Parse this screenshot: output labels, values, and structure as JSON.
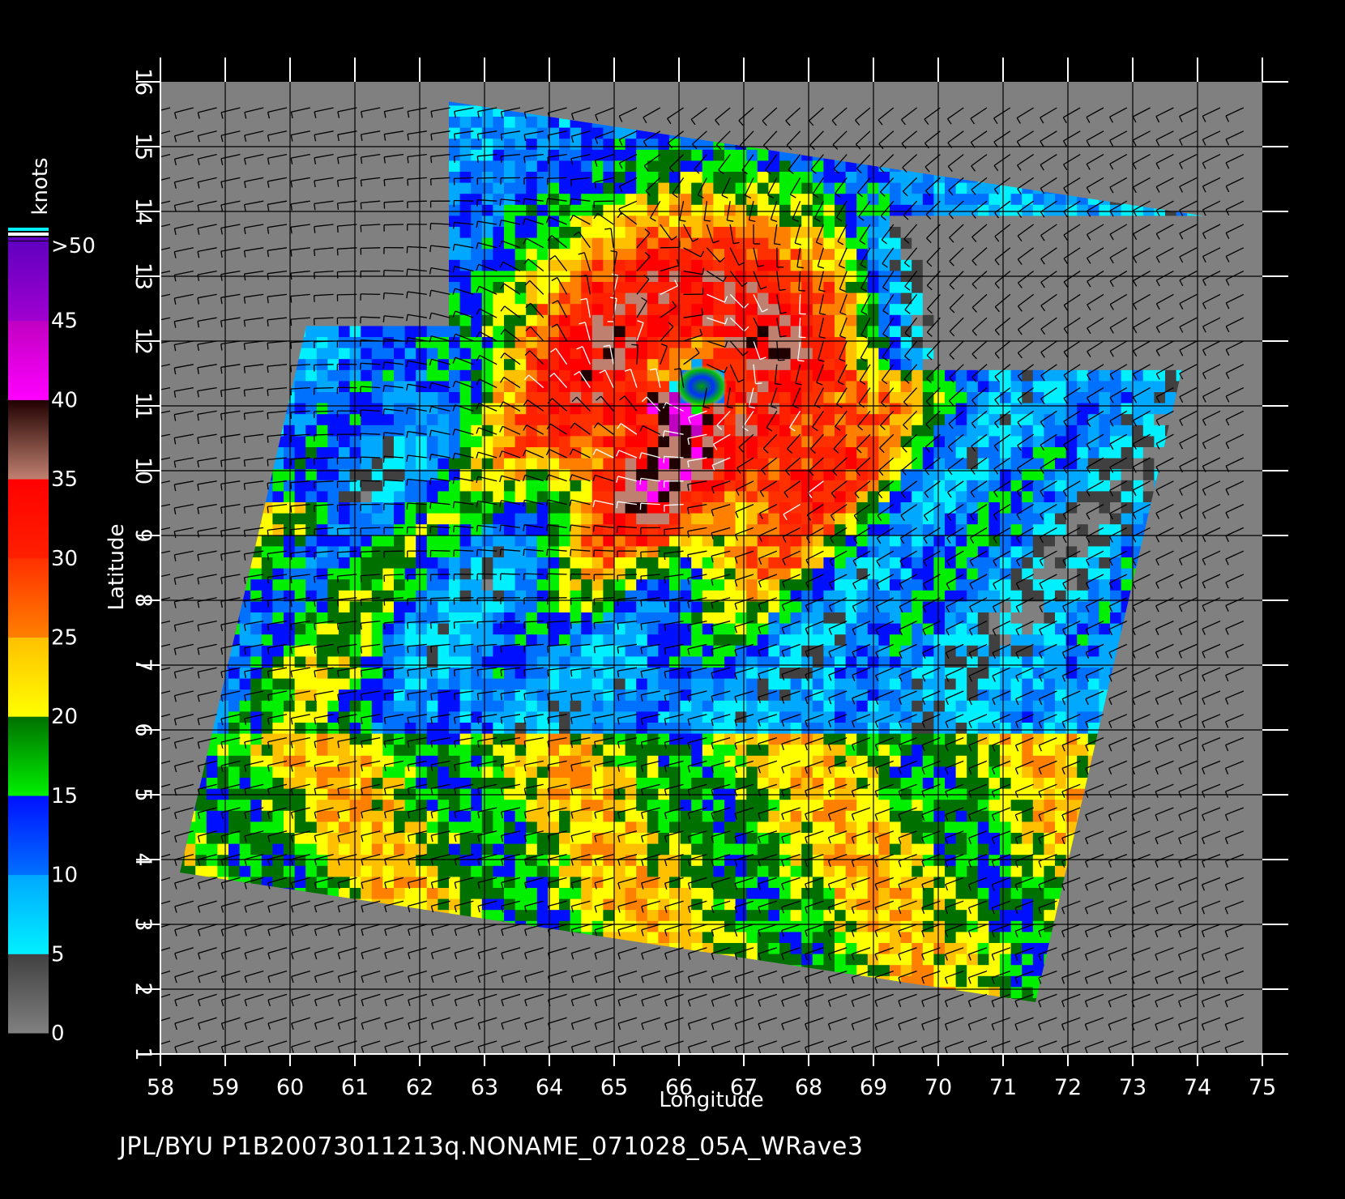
{
  "footer": {
    "text": "JPL/BYU  P1B20073011213q.NONAME_071028_05A_WRave3"
  },
  "axes": {
    "x_label": "Longitude",
    "y_label": "Latitude",
    "x_range": [
      58,
      75
    ],
    "y_range": [
      1,
      16
    ],
    "x_ticks": [
      "58",
      "59",
      "60",
      "61",
      "62",
      "63",
      "64",
      "65",
      "66",
      "67",
      "68",
      "69",
      "70",
      "71",
      "72",
      "73",
      "74",
      "75"
    ],
    "y_ticks": [
      "1",
      "2",
      "3",
      "4",
      "5",
      "6",
      "7",
      "8",
      "9",
      "10",
      "11",
      "12",
      "13",
      "14",
      "15",
      "16"
    ]
  },
  "colorbar": {
    "title": "knots",
    "labels": [
      "0",
      "5",
      "10",
      "15",
      "20",
      "25",
      "30",
      "35",
      "40",
      "45",
      ">50"
    ],
    "bands": [
      {
        "from": 0,
        "to": 5,
        "top": "#404040",
        "bottom": "#808080"
      },
      {
        "from": 5,
        "to": 10,
        "top": "#00a8ff",
        "bottom": "#00f0ff"
      },
      {
        "from": 10,
        "to": 15,
        "top": "#0010ff",
        "bottom": "#0070ff"
      },
      {
        "from": 15,
        "to": 20,
        "top": "#007000",
        "bottom": "#00f000"
      },
      {
        "from": 20,
        "to": 25,
        "top": "#ffc000",
        "bottom": "#ffff00"
      },
      {
        "from": 25,
        "to": 30,
        "top": "#ff3000",
        "bottom": "#ff8000"
      },
      {
        "from": 30,
        "to": 35,
        "top": "#ff0000",
        "bottom": "#ff2000"
      },
      {
        "from": 35,
        "to": 40,
        "top": "#200000",
        "bottom": "#c08070"
      },
      {
        "from": 40,
        "to": 45,
        "top": "#c000c0",
        "bottom": "#ff00ff"
      },
      {
        "from": 45,
        "to": 50,
        "top": "#6000c0",
        "bottom": "#a000d0"
      }
    ]
  },
  "colors": {
    "background": "#000000",
    "land_mask": "#808080",
    "grid": "#000000",
    "barb_low": "#000000",
    "barb_high": "#ffffff"
  },
  "storm_center": {
    "lon": 66.3,
    "lat": 11.3
  }
}
